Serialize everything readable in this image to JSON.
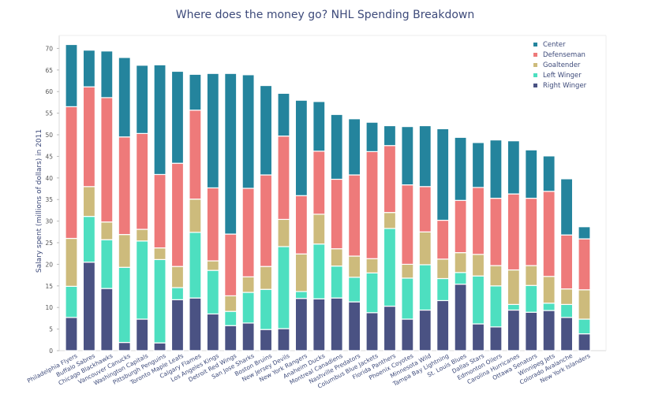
{
  "chart_data": {
    "type": "bar",
    "stacked": true,
    "title": "Where does the money go?  NHL Spending Breakdown",
    "xlabel": "",
    "ylabel": "Salary spent (millions of dollars) in 2011",
    "ylim": [
      0,
      73
    ],
    "yticks": [
      0,
      5,
      10,
      15,
      20,
      25,
      30,
      35,
      40,
      45,
      50,
      55,
      60,
      65,
      70
    ],
    "legend_position": "top-right",
    "grid": false,
    "categories": [
      "Philadelphia Flyers",
      "Buffalo Sabres",
      "Chicago Blackhawks",
      "Vancouver Canucks",
      "Washington Capitals",
      "Pittsburgh Penguins",
      "Toronto Maple Leafs",
      "Calgary Flames",
      "Los Angeles Kings",
      "Detroit Red Wings",
      "San Jose Sharks",
      "Boston Bruins",
      "New Jersey Devils",
      "New York Rangers",
      "Anaheim Ducks",
      "Montreal Canadiens",
      "Nashville Predators",
      "Columbus Blue Jackets",
      "Florida Panthers",
      "Phoenix Coyotes",
      "Minnesota Wild",
      "Tampa Bay Lightning",
      "St. Louis Blues",
      "Dallas Stars",
      "Edmonton Oilers",
      "Carolina Hurricanes",
      "Ottawa Senators",
      "Winnipeg Jets",
      "Colorado Avalanche",
      "New York Islanders"
    ],
    "series": [
      {
        "name": "Right Winger",
        "color": "#4a5283",
        "values": [
          7.7,
          20.5,
          14.4,
          1.9,
          7.3,
          1.8,
          11.8,
          12.2,
          8.5,
          5.8,
          6.4,
          4.9,
          5.1,
          12.1,
          12.0,
          12.2,
          11.3,
          8.8,
          10.3,
          7.3,
          9.4,
          11.6,
          15.4,
          6.2,
          5.5,
          9.4,
          8.9,
          9.3,
          7.7,
          3.9
        ]
      },
      {
        "name": "Left Winger",
        "color": "#4ddfc0",
        "values": [
          7.2,
          10.6,
          11.3,
          17.4,
          18.1,
          19.3,
          2.8,
          15.2,
          10.1,
          3.3,
          7.1,
          9.3,
          19.0,
          1.6,
          12.7,
          7.4,
          5.7,
          9.2,
          18.0,
          9.5,
          10.5,
          5.1,
          2.7,
          11.1,
          9.5,
          1.3,
          6.2,
          1.7,
          3.0,
          3.4
        ]
      },
      {
        "name": "Goaltender",
        "color": "#cdbb7c",
        "values": [
          11.1,
          6.9,
          4.1,
          7.6,
          2.7,
          2.7,
          4.9,
          7.7,
          2.2,
          3.6,
          3.6,
          5.3,
          6.3,
          8.7,
          6.9,
          4.0,
          4.9,
          3.3,
          3.7,
          3.2,
          7.6,
          4.5,
          4.6,
          5.0,
          4.7,
          8.0,
          4.6,
          6.2,
          3.6,
          6.8
        ]
      },
      {
        "name": "Defenseman",
        "color": "#ee7a7a",
        "values": [
          30.5,
          23.1,
          28.8,
          22.6,
          22.2,
          17.0,
          23.9,
          20.6,
          16.9,
          14.3,
          20.5,
          21.2,
          19.3,
          13.5,
          14.6,
          16.1,
          18.8,
          24.8,
          15.5,
          18.4,
          10.5,
          9.0,
          12.1,
          15.5,
          15.6,
          17.6,
          15.6,
          19.7,
          12.5,
          11.8
        ]
      },
      {
        "name": "Center",
        "color": "#24849d",
        "values": [
          14.4,
          8.5,
          10.8,
          18.4,
          15.8,
          25.4,
          21.3,
          8.3,
          26.5,
          37.2,
          26.3,
          20.7,
          9.9,
          22.1,
          11.5,
          15.0,
          13.0,
          6.8,
          4.6,
          13.5,
          14.1,
          21.2,
          14.6,
          10.4,
          13.5,
          12.3,
          11.2,
          8.2,
          13.0,
          2.8
        ]
      }
    ],
    "legend_order": [
      "Center",
      "Defenseman",
      "Goaltender",
      "Left Winger",
      "Right Winger"
    ]
  }
}
